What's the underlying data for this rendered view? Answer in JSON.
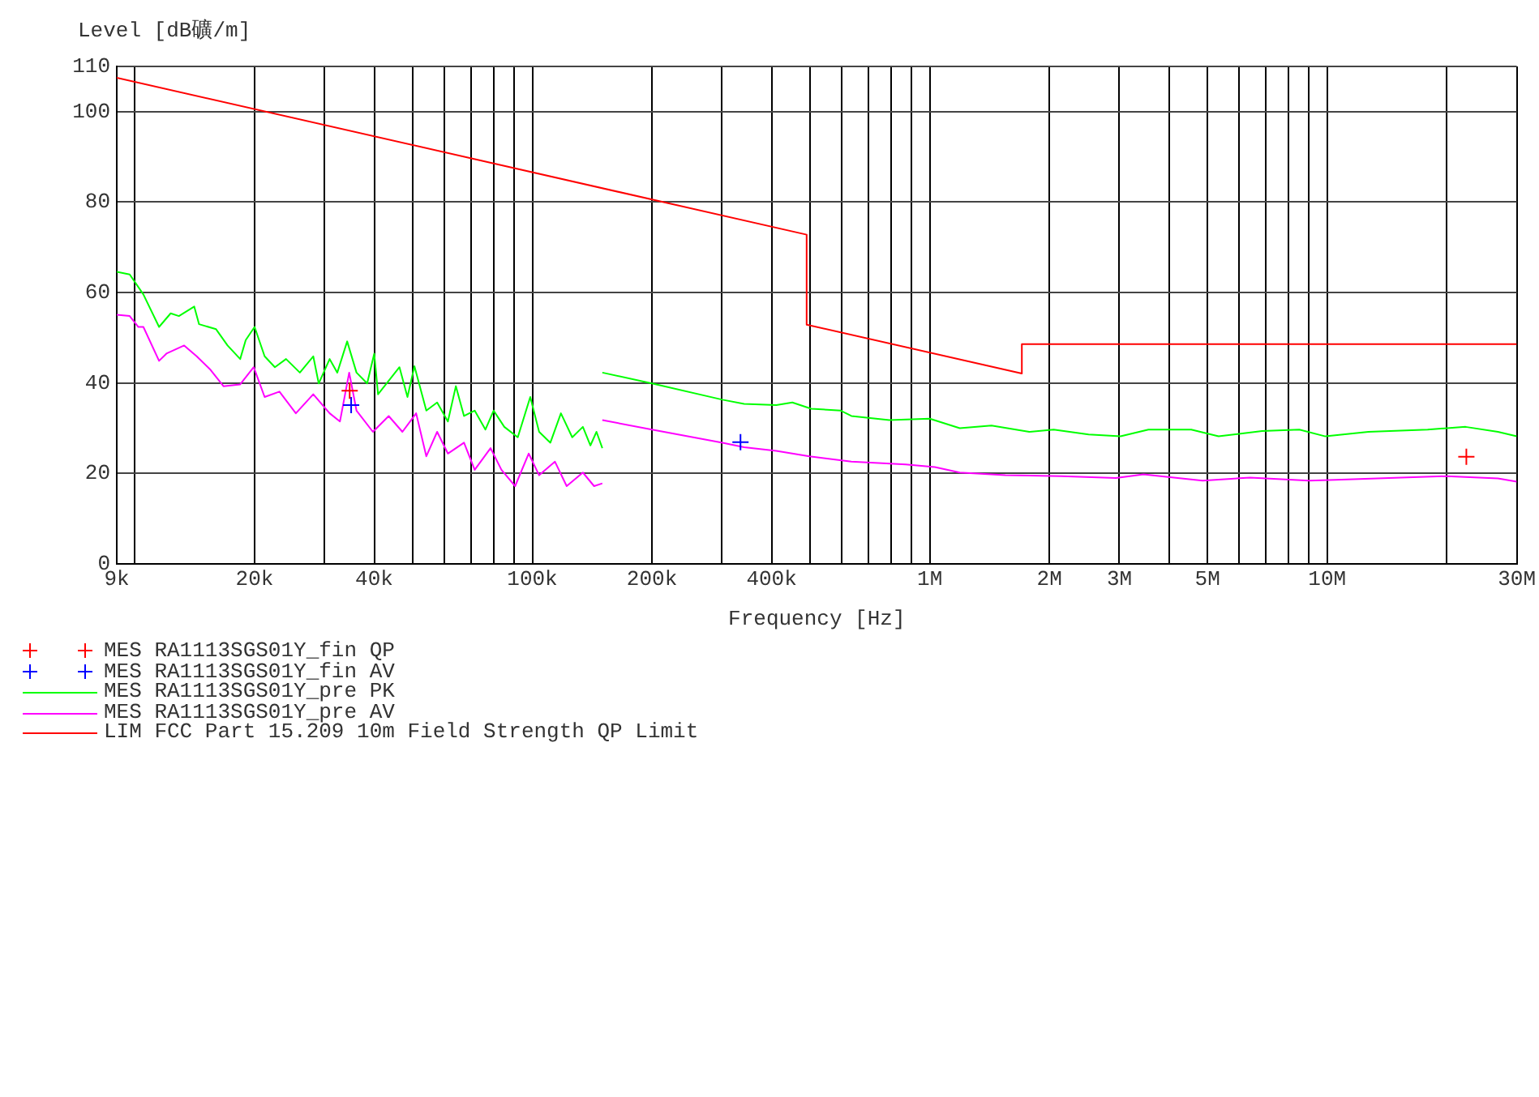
{
  "chart_data": {
    "type": "line",
    "ylabel": "Level [dB礦/m]",
    "xlabel": "Frequency [Hz]",
    "log": "x",
    "grid": true,
    "legend": "bottom",
    "xlim": [
      9000,
      30000000
    ],
    "ylim": [
      0,
      110
    ],
    "xticks": [
      {
        "value": 9000,
        "label": "9k"
      },
      {
        "value": 10000,
        "label": null
      },
      {
        "value": 20000,
        "label": "20k"
      },
      {
        "value": 30000,
        "label": null
      },
      {
        "value": 40000,
        "label": "40k"
      },
      {
        "value": 50000,
        "label": null
      },
      {
        "value": 60000,
        "label": null
      },
      {
        "value": 70000,
        "label": null
      },
      {
        "value": 80000,
        "label": null
      },
      {
        "value": 90000,
        "label": null
      },
      {
        "value": 100000,
        "label": "100k"
      },
      {
        "value": 200000,
        "label": "200k"
      },
      {
        "value": 300000,
        "label": null
      },
      {
        "value": 400000,
        "label": "400k"
      },
      {
        "value": 500000,
        "label": null
      },
      {
        "value": 600000,
        "label": null
      },
      {
        "value": 700000,
        "label": null
      },
      {
        "value": 800000,
        "label": null
      },
      {
        "value": 900000,
        "label": null
      },
      {
        "value": 1000000,
        "label": "1M"
      },
      {
        "value": 2000000,
        "label": "2M"
      },
      {
        "value": 3000000,
        "label": "3M"
      },
      {
        "value": 4000000,
        "label": null
      },
      {
        "value": 5000000,
        "label": "5M"
      },
      {
        "value": 6000000,
        "label": null
      },
      {
        "value": 7000000,
        "label": null
      },
      {
        "value": 8000000,
        "label": null
      },
      {
        "value": 9000000,
        "label": null
      },
      {
        "value": 10000000,
        "label": "10M"
      },
      {
        "value": 20000000,
        "label": null
      },
      {
        "value": 30000000,
        "label": "30M"
      }
    ],
    "yticks": [
      0,
      20,
      40,
      60,
      80,
      100,
      110
    ],
    "series": [
      {
        "name": "MES RA1113SGS01Y_fin QP",
        "type": "scatter",
        "marker": "cross",
        "color": "#ff0000",
        "x": [
          34700,
          22400000
        ],
        "values": [
          38.3,
          23.7
        ]
      },
      {
        "name": "MES RA1113SGS01Y_fin AV",
        "type": "scatter",
        "marker": "cross",
        "color": "#0000ff",
        "x": [
          35000,
          334000
        ],
        "values": [
          35.1,
          26.9
        ]
      },
      {
        "name": "MES RA1113SGS01Y_pre PK",
        "marker": "none",
        "color": "#00ff00",
        "x": [
          9000,
          9700,
          10500,
          11500,
          12300,
          12900,
          14100,
          14500,
          16000,
          17100,
          18400,
          19000,
          20000,
          21200,
          22500,
          24000,
          26000,
          28100,
          29000,
          30900,
          32300,
          34200,
          36100,
          38400,
          40000,
          40900,
          46300,
          48500,
          50500,
          54100,
          57600,
          61300,
          64200,
          67300,
          71600,
          76200,
          79900,
          85000,
          91900,
          98800,
          104000,
          111000,
          118000,
          126000,
          134000,
          140000,
          145000,
          150000
        ],
        "values": [
          64.6,
          64.0,
          59.6,
          52.4,
          55.4,
          54.8,
          56.9,
          53.0,
          51.9,
          48.3,
          45.3,
          49.5,
          52.4,
          45.9,
          43.5,
          45.3,
          42.3,
          45.9,
          39.9,
          45.3,
          42.3,
          49.2,
          42.3,
          39.9,
          46.5,
          37.5,
          43.5,
          36.9,
          43.7,
          33.9,
          35.7,
          31.5,
          39.3,
          32.7,
          33.9,
          29.7,
          33.9,
          30.3,
          28.0,
          36.9,
          29.2,
          26.8,
          33.3,
          28.0,
          30.3,
          26.2,
          29.2,
          25.6
        ]
      },
      {
        "marker": "none",
        "color": "#00ff00",
        "x": [
          150000,
          200000,
          301000,
          341000,
          411000,
          451000,
          503000,
          597000,
          635000,
          791000,
          1000000,
          1190000,
          1430000,
          1780000,
          2050000,
          2510000,
          3020000,
          3550000,
          4550000,
          5330000,
          6860000,
          8510000,
          9900000,
          12700000,
          17900000,
          22300000,
          26900000,
          30000000
        ],
        "values": [
          42.3,
          39.9,
          36.3,
          35.4,
          35.1,
          35.7,
          34.3,
          33.9,
          32.7,
          31.8,
          32.1,
          30.0,
          30.6,
          29.2,
          29.7,
          28.6,
          28.2,
          29.7,
          29.7,
          28.2,
          29.4,
          29.7,
          28.2,
          29.2,
          29.7,
          30.3,
          29.2,
          28.2
        ]
      },
      {
        "name": "MES RA1113SGS01Y_pre AV",
        "marker": "none",
        "color": "#ff00ff",
        "x": [
          9000,
          9700,
          10200,
          10500,
          11500,
          12000,
          13300,
          14300,
          15500,
          16700,
          18400,
          19900,
          21200,
          23100,
          25400,
          28100,
          30900,
          32800,
          34600,
          36100,
          39700,
          43500,
          47100,
          51000,
          54100,
          57600,
          61300,
          67300,
          71600,
          78500,
          83600,
          90500,
          97900,
          104000,
          114000,
          122000,
          134000,
          143000,
          150000
        ],
        "values": [
          55.1,
          54.8,
          52.4,
          52.4,
          44.9,
          46.5,
          48.3,
          45.9,
          42.9,
          39.3,
          39.7,
          43.5,
          36.9,
          38.1,
          33.3,
          37.5,
          33.3,
          31.5,
          42.3,
          33.9,
          29.2,
          32.7,
          29.2,
          33.3,
          23.8,
          29.2,
          24.4,
          26.8,
          20.8,
          25.6,
          20.8,
          17.2,
          24.4,
          19.6,
          22.6,
          17.2,
          20.2,
          17.2,
          17.8
        ]
      },
      {
        "marker": "none",
        "color": "#ff00ff",
        "x": [
          150000,
          200000,
          301000,
          341000,
          411000,
          498000,
          635000,
          870000,
          1030000,
          1190000,
          1550000,
          2150000,
          2940000,
          3450000,
          4860000,
          6400000,
          9000000,
          10500000,
          14300000,
          20000000,
          26900000,
          30000000
        ],
        "values": [
          31.8,
          29.7,
          26.8,
          25.8,
          25.0,
          23.8,
          22.6,
          22.0,
          21.4,
          20.2,
          19.6,
          19.4,
          19.0,
          19.8,
          18.4,
          19.1,
          18.4,
          18.6,
          19.0,
          19.4,
          18.9,
          18.2
        ]
      },
      {
        "name": "LIM FCC Part 15.209 10m Field Strength QP Limit",
        "marker": "none",
        "color": "#ff0000",
        "x": [
          9000,
          490000,
          490000,
          1705000,
          1705000,
          30000000
        ],
        "values": [
          107.5,
          72.8,
          52.9,
          42.1,
          48.6,
          48.6
        ]
      }
    ]
  }
}
